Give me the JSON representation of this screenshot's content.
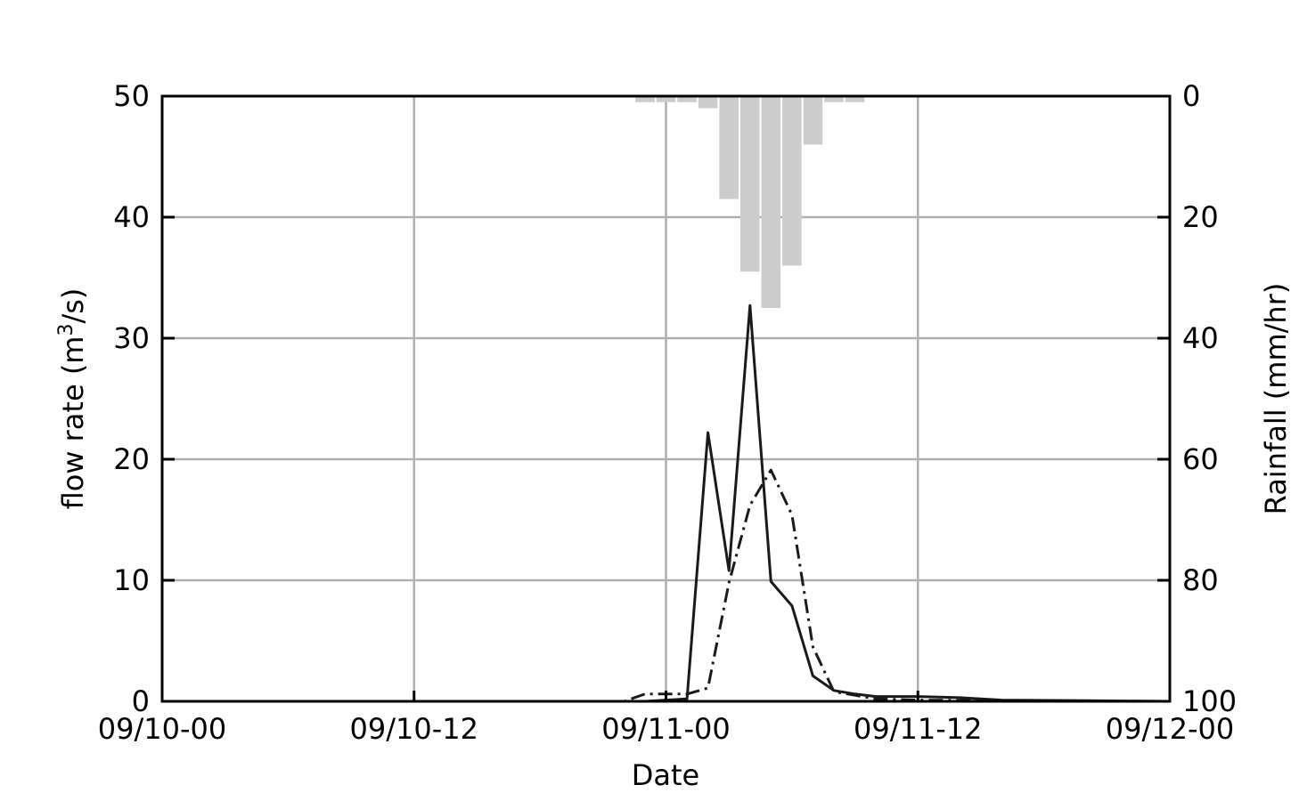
{
  "chart_data": {
    "type": "line",
    "xlabel": "Date",
    "ylabel_left_prefix": "flow rate (m",
    "ylabel_left_sup": "3",
    "ylabel_left_suffix": "/s)",
    "ylabel_right": "Rainfall (mm/hr)",
    "x_ticks": [
      "09/10-00",
      "09/10-12",
      "09/11-00",
      "09/11-12",
      "09/12-00"
    ],
    "x_range_hours": [
      0,
      48
    ],
    "ylim_left": [
      0,
      50
    ],
    "y_ticks_left": [
      "0",
      "10",
      "20",
      "30",
      "40",
      "50"
    ],
    "ylim_right": [
      100,
      0
    ],
    "y_ticks_right": [
      "0",
      "20",
      "40",
      "60",
      "80",
      "100"
    ],
    "right_axis_inverted": true,
    "grid": true,
    "colors": {
      "solid": "#1a1a1a",
      "dashdot": "#1a1a1a",
      "rain": "#cccccc",
      "grid": "#b0b0b0"
    },
    "series": [
      {
        "style": "solid",
        "axis": "left",
        "x_hours": [
          0,
          22,
          23,
          24,
          25,
          26,
          27,
          28,
          29,
          30,
          31,
          32,
          33,
          34,
          36,
          38,
          40,
          44,
          48
        ],
        "values": [
          0,
          0,
          0,
          0.1,
          0.2,
          22.2,
          10.8,
          32.7,
          9.9,
          7.9,
          2.1,
          0.9,
          0.6,
          0.4,
          0.4,
          0.3,
          0.1,
          0.05,
          0
        ]
      },
      {
        "style": "dashdot",
        "axis": "left",
        "x_hours": [
          0,
          22,
          23,
          24,
          25,
          26,
          27,
          28,
          29,
          30,
          31,
          32,
          33,
          34,
          36,
          40,
          44,
          48
        ],
        "values": [
          0,
          0,
          0.6,
          0.6,
          0.6,
          1.1,
          9.8,
          16.2,
          19.1,
          15.4,
          4.5,
          0.8,
          0.5,
          0.2,
          0.1,
          0.05,
          0,
          0
        ]
      },
      {
        "type": "bar",
        "axis": "right",
        "x_start_hours": [
          22.5,
          23.5,
          24.5,
          25.5,
          26.5,
          27.5,
          28.5,
          29.5,
          30.5,
          31.5,
          32.5
        ],
        "values": [
          1,
          1,
          1,
          2,
          17,
          29,
          35,
          28,
          8,
          1,
          1
        ]
      }
    ]
  }
}
